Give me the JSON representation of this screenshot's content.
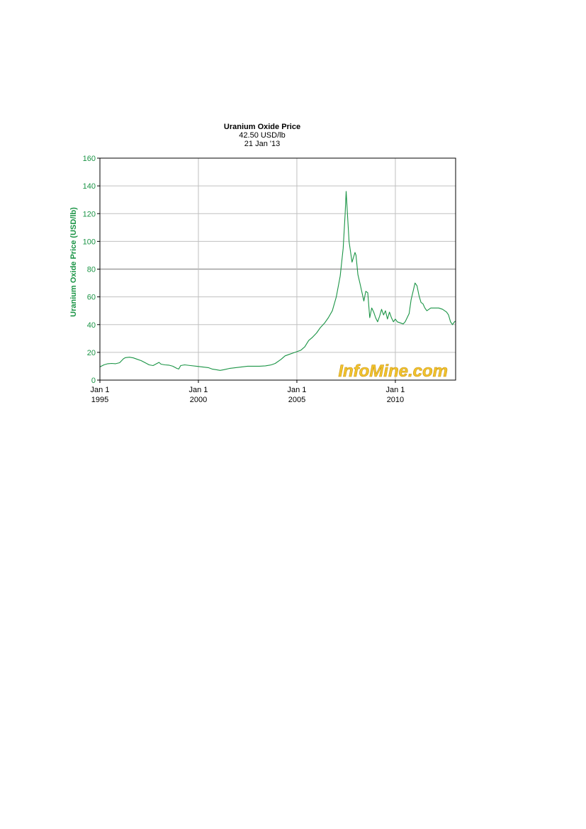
{
  "chart_data": {
    "type": "line",
    "title": "Uranium Oxide Price",
    "subtitle": "42.50 USD/lb",
    "date": "21  Jan  '13",
    "ylabel": "Uranium Oxide Price (USD/lb)",
    "xlabel": "",
    "ylim": [
      0,
      160
    ],
    "yticks": [
      0,
      20,
      40,
      60,
      80,
      100,
      120,
      140,
      160
    ],
    "xlim": [
      1995.0,
      2013.06
    ],
    "xticks": [
      {
        "value": 1995,
        "label_top": "Jan 1",
        "label_bottom": "1995"
      },
      {
        "value": 2000,
        "label_top": "Jan 1",
        "label_bottom": "2000"
      },
      {
        "value": 2005,
        "label_top": "Jan 1",
        "label_bottom": "2005"
      },
      {
        "value": 2010,
        "label_top": "Jan 1",
        "label_bottom": "2010"
      }
    ],
    "grid": true,
    "highlight_gridline": 80,
    "watermark": "InfoMine.com",
    "colors": {
      "line": "#1a9445",
      "axis_text": "#1a9445",
      "grid": "#c0c0c0",
      "watermark": "#f2c42c"
    },
    "series": [
      {
        "x": [
          1995.0,
          1995.2,
          1995.4,
          1995.6,
          1995.8,
          1996.0,
          1996.1,
          1996.2,
          1996.3,
          1996.5,
          1996.7,
          1996.9,
          1997.1,
          1997.3,
          1997.5,
          1997.7,
          1997.9,
          1998.0,
          1998.1,
          1998.3,
          1998.5,
          1998.7,
          1998.9,
          1999.0,
          1999.1,
          1999.3,
          1999.6,
          1999.9,
          2000.2,
          2000.5,
          2000.7,
          2000.9,
          2001.1,
          2001.3,
          2001.6,
          2001.9,
          2002.2,
          2002.5,
          2002.8,
          2003.1,
          2003.4,
          2003.7,
          2003.9,
          2004.2,
          2004.4,
          2004.6,
          2004.8,
          2005.0,
          2005.2,
          2005.4,
          2005.6,
          2005.8,
          2006.0,
          2006.2,
          2006.4,
          2006.6,
          2006.8,
          2007.0,
          2007.2,
          2007.35,
          2007.45,
          2007.5,
          2007.65,
          2007.8,
          2007.95,
          2008.0,
          2008.1,
          2008.2,
          2008.4,
          2008.5,
          2008.6,
          2008.7,
          2008.8,
          2008.9,
          2009.0,
          2009.1,
          2009.2,
          2009.3,
          2009.4,
          2009.5,
          2009.6,
          2009.7,
          2009.8,
          2009.9,
          2010.0,
          2010.1,
          2010.3,
          2010.4,
          2010.5,
          2010.6,
          2010.7,
          2010.8,
          2010.9,
          2011.0,
          2011.1,
          2011.2,
          2011.3,
          2011.4,
          2011.5,
          2011.6,
          2011.8,
          2012.0,
          2012.2,
          2012.4,
          2012.6,
          2012.7,
          2012.8,
          2012.9,
          2013.0,
          2013.06
        ],
        "y": [
          9.5,
          11.0,
          11.8,
          12.0,
          11.8,
          12.5,
          14.0,
          15.5,
          16.2,
          16.5,
          16.0,
          15.0,
          14.0,
          12.5,
          11.0,
          10.5,
          12.0,
          12.8,
          11.5,
          11.0,
          10.8,
          10.0,
          8.5,
          8.0,
          10.5,
          11.0,
          10.5,
          10.0,
          9.5,
          9.0,
          8.0,
          7.5,
          7.0,
          7.5,
          8.5,
          9.0,
          9.5,
          10.0,
          10.0,
          10.0,
          10.3,
          11.0,
          12.0,
          15.0,
          17.5,
          18.5,
          19.5,
          20.5,
          21.5,
          24.0,
          28.5,
          31.0,
          34.0,
          38.0,
          41.0,
          45.0,
          50.0,
          60.0,
          75.0,
          95.0,
          120.0,
          136.0,
          100.0,
          85.0,
          92.0,
          90.0,
          76.0,
          70.0,
          57.0,
          64.0,
          63.0,
          45.0,
          52.0,
          49.0,
          45.0,
          42.0,
          46.0,
          51.0,
          47.0,
          50.0,
          44.0,
          49.0,
          45.0,
          42.0,
          44.0,
          42.0,
          41.0,
          40.5,
          42.0,
          45.0,
          48.0,
          58.0,
          64.0,
          70.0,
          68.0,
          61.0,
          56.0,
          55.0,
          52.0,
          50.0,
          52.0,
          52.0,
          52.0,
          51.0,
          49.0,
          47.0,
          42.0,
          40.0,
          42.0,
          42.5
        ]
      }
    ]
  }
}
